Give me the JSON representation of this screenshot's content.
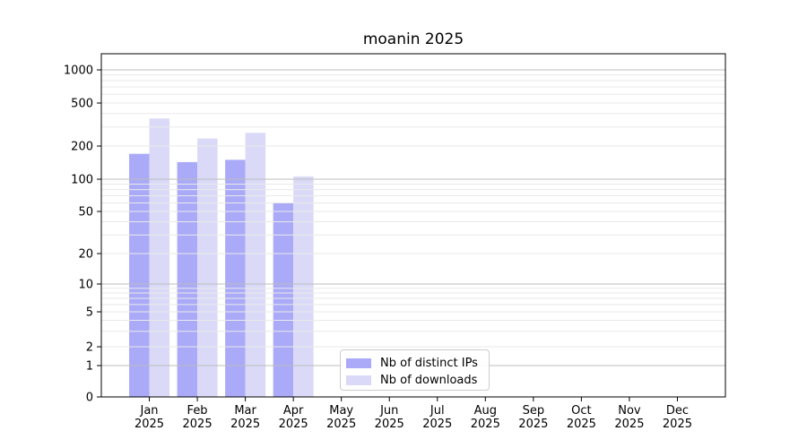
{
  "chart_data": {
    "type": "bar",
    "title": "moanin 2025",
    "scale": "symlog",
    "xlabel": "",
    "ylabel": "",
    "months": [
      "Jan",
      "Feb",
      "Mar",
      "Apr",
      "May",
      "Jun",
      "Jul",
      "Aug",
      "Sep",
      "Oct",
      "Nov",
      "Dec"
    ],
    "year": "2025",
    "y_ticks": [
      0,
      1,
      2,
      5,
      10,
      20,
      50,
      100,
      200,
      500,
      1000
    ],
    "ylim": [
      0,
      1400
    ],
    "grid": "on",
    "legend_position": "bottom-center",
    "series": [
      {
        "name": "Nb of distinct IPs",
        "color": "#aaaaf8",
        "values": [
          170,
          143,
          150,
          60,
          null,
          null,
          null,
          null,
          null,
          null,
          null,
          null
        ]
      },
      {
        "name": "Nb of downloads",
        "color": "#dadaf8",
        "values": [
          360,
          235,
          265,
          106,
          null,
          null,
          null,
          null,
          null,
          null,
          null,
          null
        ]
      }
    ]
  },
  "colors": {
    "background": "#ffffff",
    "axis_frame": "#000000",
    "major_grid": "#bcbcbc",
    "minor_grid": "#e9e9e9",
    "tick_text": "#000000"
  }
}
